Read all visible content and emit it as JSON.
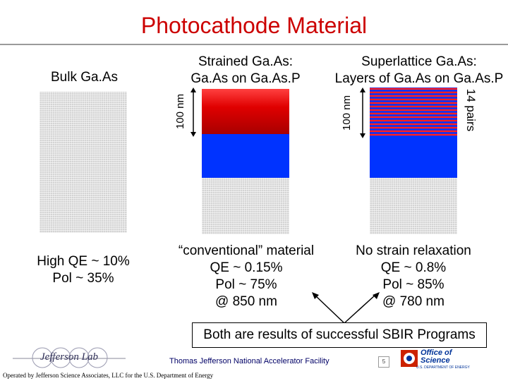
{
  "title": "Photocathode Material",
  "columns": {
    "bulk": {
      "heading": "Bulk Ga.As",
      "caption": [
        "High QE ~ 10%",
        "Pol ~ 35%"
      ]
    },
    "strained": {
      "heading": [
        "Strained Ga.As:",
        "Ga.As on Ga.As.P"
      ],
      "thickness_label": "100 nm",
      "caption": [
        "“conventional” material",
        "QE ~ 0.15%",
        "Pol ~ 75%",
        "@ 850 nm"
      ]
    },
    "superlattice": {
      "heading": [
        "Superlattice Ga.As:",
        "Layers of Ga.As on Ga.As.P"
      ],
      "thickness_label": "100 nm",
      "pairs_label": "14 pairs",
      "caption": [
        "No strain relaxation",
        "QE ~ 0.8%",
        "Pol ~ 85%",
        "@ 780 nm"
      ]
    }
  },
  "note": "Both are results of successful SBIR Programs",
  "footer": {
    "lab": "Thomas Jefferson National Accelerator Facility",
    "operated_by": "Operated by Jefferson Science Associates, LLC for the U.S. Department of Energy",
    "left_logo_text": "Jefferson Lab",
    "right_logo_line1": "Office of",
    "right_logo_line2": "Science",
    "right_logo_line3": "U.S. DEPARTMENT OF ENERGY",
    "page_number": "5"
  },
  "colors": {
    "title": "#cc0000",
    "substrate": "#d4d4d4",
    "gaasp_layer": "#0033ff",
    "strained_layer": "#e00000",
    "footer_text": "#000066"
  }
}
